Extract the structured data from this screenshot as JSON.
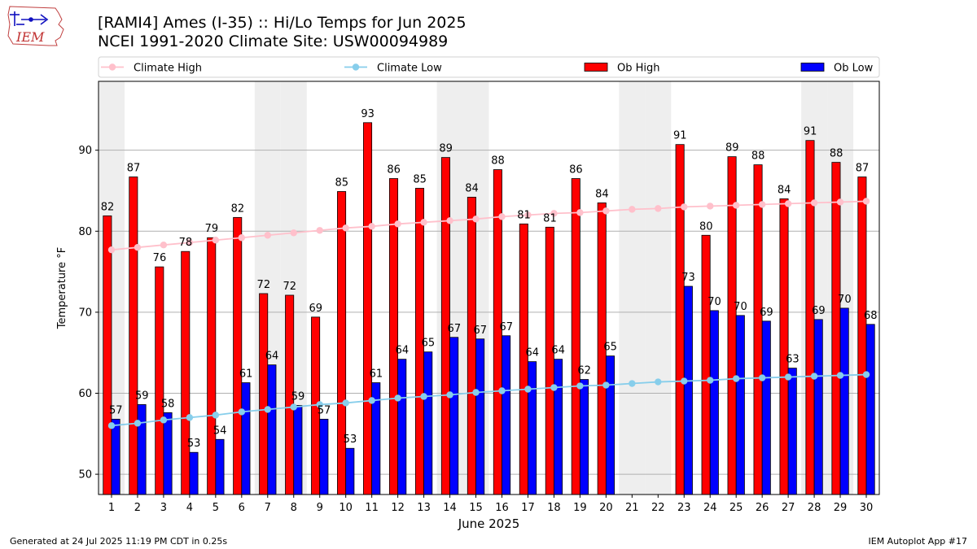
{
  "header": {
    "title_line1": "[RAMI4] Ames (I-35) :: Hi/Lo Temps for Jun 2025",
    "title_line2": "NCEI 1991-2020 Climate Site: USW00094989"
  },
  "logo": {
    "text": "IEM"
  },
  "footer": {
    "generated": "Generated at 24 Jul 2025 11:19 PM CDT in 0.25s",
    "app": "IEM Autoplot App #17"
  },
  "chart_data": {
    "type": "bar",
    "title": "[RAMI4] Ames (I-35) :: Hi/Lo Temps for Jun 2025",
    "subtitle": "NCEI 1991-2020 Climate Site: USW00094989",
    "xlabel": "June 2025",
    "ylabel": "Temperature °F",
    "ylim": [
      47.5,
      98.5
    ],
    "yticks": [
      50,
      60,
      70,
      80,
      90
    ],
    "grid": "horizontal",
    "legend_position": "top",
    "categories": [
      1,
      2,
      3,
      4,
      5,
      6,
      7,
      8,
      9,
      10,
      11,
      12,
      13,
      14,
      15,
      16,
      17,
      18,
      19,
      20,
      21,
      22,
      23,
      24,
      25,
      26,
      27,
      28,
      29,
      30
    ],
    "weekend_days": [
      1,
      7,
      8,
      14,
      15,
      21,
      22,
      28,
      29
    ],
    "series": [
      {
        "name": "Climate High",
        "kind": "line",
        "color": "#ffc0cb",
        "values": [
          77.7,
          78.0,
          78.3,
          78.6,
          78.9,
          79.2,
          79.5,
          79.8,
          80.1,
          80.4,
          80.6,
          80.9,
          81.1,
          81.3,
          81.5,
          81.8,
          82.0,
          82.2,
          82.3,
          82.5,
          82.7,
          82.8,
          83.0,
          83.1,
          83.2,
          83.3,
          83.4,
          83.5,
          83.6,
          83.7
        ]
      },
      {
        "name": "Climate Low",
        "kind": "line",
        "color": "#87ceeb",
        "values": [
          56.0,
          56.3,
          56.7,
          57.0,
          57.3,
          57.7,
          58.0,
          58.3,
          58.6,
          58.8,
          59.1,
          59.4,
          59.6,
          59.8,
          60.1,
          60.3,
          60.5,
          60.7,
          60.9,
          61.0,
          61.2,
          61.4,
          61.5,
          61.6,
          61.8,
          61.9,
          62.0,
          62.1,
          62.2,
          62.3
        ]
      },
      {
        "name": "Ob High",
        "kind": "bar",
        "color": "#ff0000",
        "values": [
          82,
          87,
          76,
          78,
          79,
          82,
          72,
          72,
          69,
          85,
          93,
          86,
          85,
          89,
          84,
          88,
          81,
          81,
          86,
          84,
          null,
          null,
          91,
          80,
          89,
          88,
          84,
          91,
          88,
          87
        ],
        "bar_values": [
          81.9,
          86.7,
          75.6,
          77.5,
          79.2,
          81.7,
          72.3,
          72.1,
          69.4,
          84.9,
          93.4,
          86.5,
          85.3,
          89.1,
          84.2,
          87.6,
          80.9,
          80.5,
          86.5,
          83.5,
          null,
          null,
          90.7,
          79.5,
          89.2,
          88.2,
          84.0,
          91.2,
          88.5,
          86.7
        ]
      },
      {
        "name": "Ob Low",
        "kind": "bar",
        "color": "#0000ff",
        "values": [
          57,
          59,
          58,
          53,
          54,
          61,
          64,
          59,
          57,
          53,
          61,
          64,
          65,
          67,
          67,
          67,
          64,
          64,
          62,
          65,
          null,
          null,
          73,
          70,
          70,
          69,
          63,
          69,
          70,
          68
        ],
        "bar_values": [
          56.8,
          58.6,
          57.6,
          52.7,
          54.3,
          61.3,
          63.5,
          58.5,
          56.8,
          53.2,
          61.3,
          64.2,
          65.1,
          66.9,
          66.7,
          67.1,
          63.9,
          64.2,
          61.7,
          64.6,
          null,
          null,
          73.2,
          70.2,
          69.6,
          68.9,
          63.1,
          69.1,
          70.5,
          68.5
        ]
      }
    ]
  }
}
